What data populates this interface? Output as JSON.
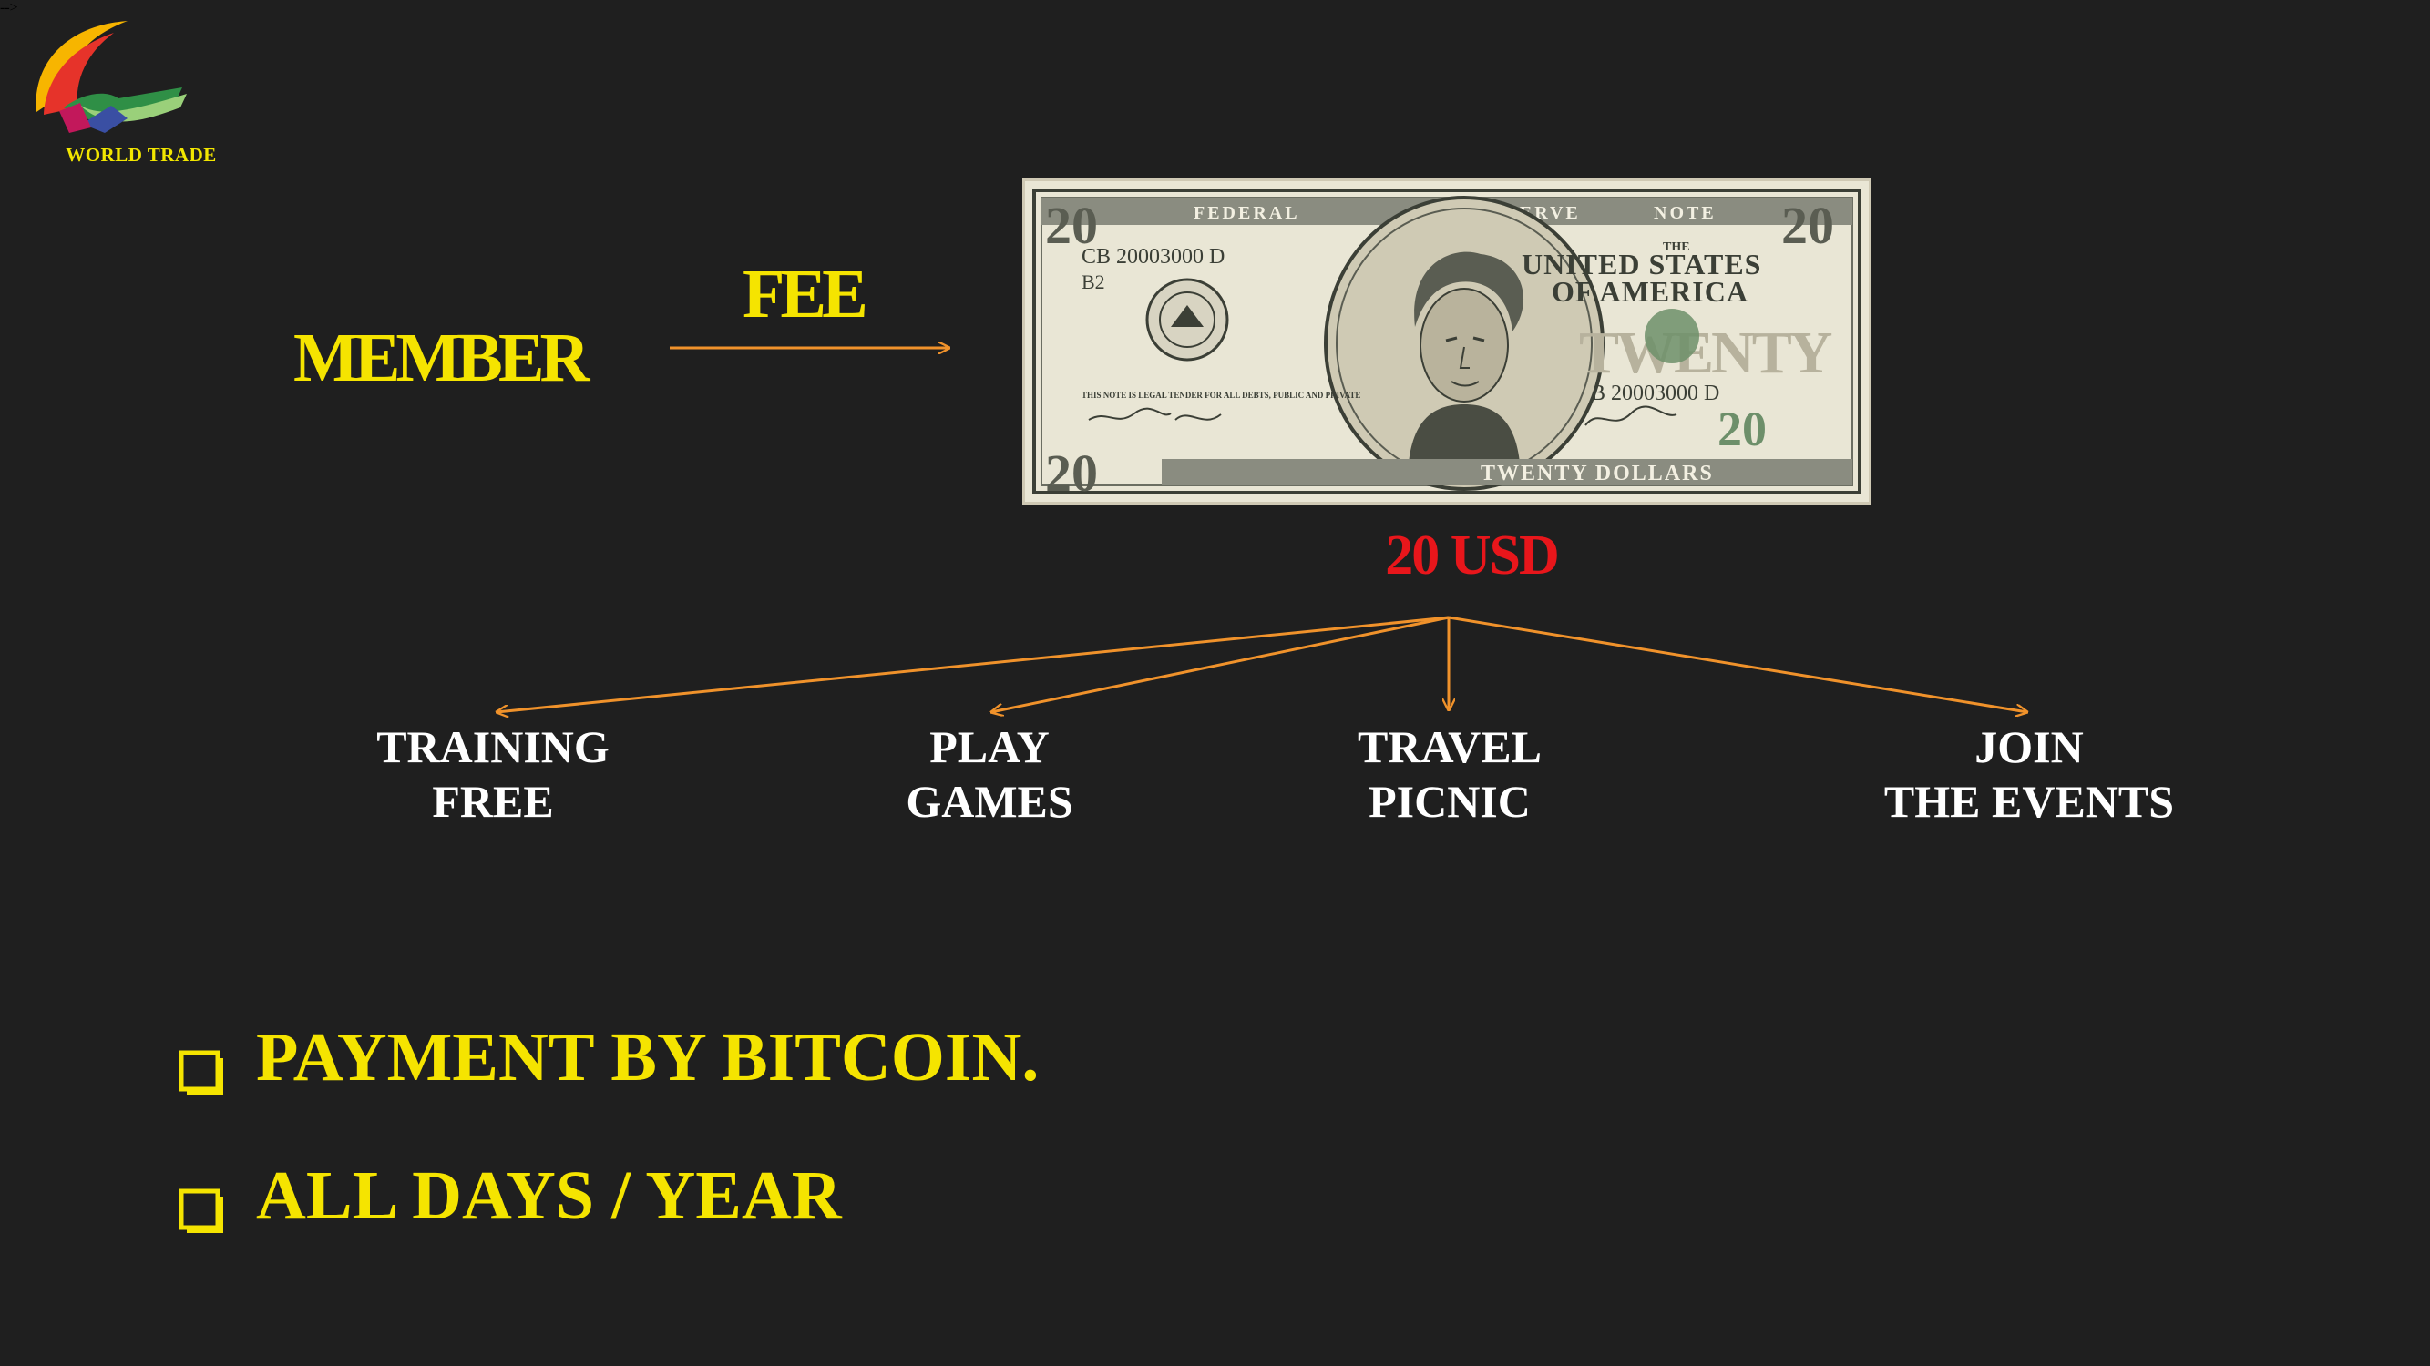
{
  "logo": {
    "text": "WORLD TRADE"
  },
  "flow": {
    "source": "MEMBER",
    "arrow_label": "FEE",
    "price": "20 USD"
  },
  "banknote": {
    "header_left": "FEDERAL",
    "header_mid": "RESERVE",
    "header_right": "NOTE",
    "denomination": "20",
    "serial_top": "CB 20003000 D",
    "bank_code": "B2",
    "serial_bottom": "CB 20003000 D",
    "title_small": "THE",
    "title_line1": "UNITED STATES",
    "title_line2": "OF AMERICA",
    "legal_tender": "THIS NOTE IS LEGAL TENDER FOR ALL DEBTS, PUBLIC AND PRIVATE",
    "watermark_word": "TWENTY",
    "footer": "TWENTY DOLLARS",
    "colors": {
      "paper": "#e9e6d5",
      "ink": "#3b3f36",
      "green": "#6d8f6a"
    }
  },
  "benefits": [
    {
      "line1": "TRAINING",
      "line2": "FREE"
    },
    {
      "line1": "PLAY",
      "line2": "GAMES"
    },
    {
      "line1": "TRAVEL",
      "line2": "PICNIC"
    },
    {
      "line1": "JOIN",
      "line2": "THE EVENTS"
    }
  ],
  "bullets": [
    {
      "text": "PAYMENT BY BITCOIN."
    },
    {
      "text": "ALL DAYS / YEAR"
    }
  ],
  "colors": {
    "background": "#1f1f1f",
    "accent_yellow": "#f5e400",
    "price_red": "#e8161b",
    "arrow_orange": "#f0922b",
    "node_text": "#ffffff"
  }
}
